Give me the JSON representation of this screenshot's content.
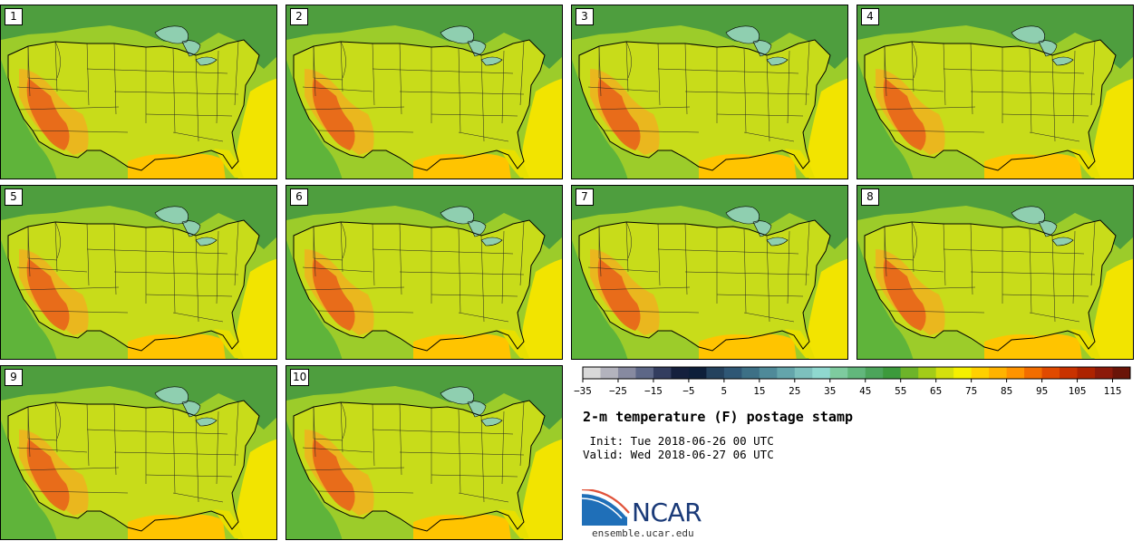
{
  "panels": [
    {
      "label": "1"
    },
    {
      "label": "2"
    },
    {
      "label": "3"
    },
    {
      "label": "4"
    },
    {
      "label": "5"
    },
    {
      "label": "6"
    },
    {
      "label": "7"
    },
    {
      "label": "8"
    },
    {
      "label": "9"
    },
    {
      "label": "10"
    }
  ],
  "colorbar": {
    "colors": [
      "#d9d9d9",
      "#b3b3bd",
      "#878aa0",
      "#5d6787",
      "#333d5f",
      "#15203d",
      "#0e1f3a",
      "#24425e",
      "#2f5775",
      "#3d7086",
      "#4f8a99",
      "#64a5ab",
      "#7dc0bd",
      "#8fd8cf",
      "#7ecb9f",
      "#62b77c",
      "#4ca55b",
      "#3c9a3c",
      "#6db42a",
      "#a3cc18",
      "#d4e00e",
      "#f5f000",
      "#ffd000",
      "#ffb300",
      "#ff9400",
      "#f26d00",
      "#e04a00",
      "#c93200",
      "#ad2300",
      "#8c1a0a",
      "#6a1408"
    ],
    "tick_labels": [
      "−35",
      "−25",
      "−15",
      "−5",
      "5",
      "15",
      "25",
      "35",
      "45",
      "55",
      "65",
      "75",
      "85",
      "95",
      "105",
      "115"
    ]
  },
  "info": {
    "title": "2-m temperature (F) postage stamp",
    "init": " Init: Tue 2018-06-26 00 UTC",
    "valid": "Valid: Wed 2018-06-27 06 UTC"
  },
  "logo": {
    "text": "NCAR",
    "url": "ensemble.ucar.edu"
  }
}
